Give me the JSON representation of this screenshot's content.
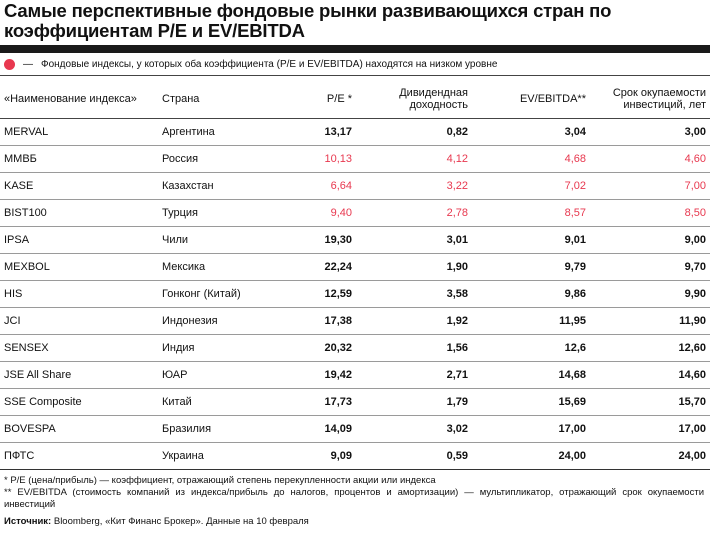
{
  "title": "Самые перспективные фондовые рынки развивающихся стран по коэффициентам P/E и EV/EBITDA",
  "legend": {
    "marker_color": "#e8384f",
    "text": "Фондовые индексы, у которых оба  коэффициента (P/E и EV/EBITDA) находятся на низком уровне"
  },
  "table": {
    "headers": [
      "«Наименование индекса»",
      "Страна",
      "P/E *",
      "Дивидендная доходность",
      "EV/EBITDA**",
      "Срок окупаемости инвестиций, лет"
    ],
    "rows": [
      {
        "name": "MERVAL",
        "country": "Аргентина",
        "pe": "13,17",
        "div": "0,82",
        "ev": "3,04",
        "payback": "3,00"
      },
      {
        "name": "ММВБ",
        "country": "Россия",
        "pe": "10,13",
        "div": "4,12",
        "ev": "4,68",
        "payback": "4,60"
      },
      {
        "name": "KASE",
        "country": "Казахстан",
        "pe": "6,64",
        "div": "3,22",
        "ev": "7,02",
        "payback": "7,00"
      },
      {
        "name": "BIST100",
        "country": "Турция",
        "pe": "9,40",
        "div": "2,78",
        "ev": "8,57",
        "payback": "8,50"
      },
      {
        "name": "IPSA",
        "country": "Чили",
        "pe": "19,30",
        "div": "3,01",
        "ev": "9,01",
        "payback": "9,00"
      },
      {
        "name": "MEXBOL",
        "country": "Мексика",
        "pe": "22,24",
        "div": "1,90",
        "ev": "9,79",
        "payback": "9,70"
      },
      {
        "name": "HIS",
        "country": "Гонконг (Китай)",
        "pe": "12,59",
        "div": "3,58",
        "ev": "9,86",
        "payback": "9,90"
      },
      {
        "name": "JCI",
        "country": "Индонезия",
        "pe": "17,38",
        "div": "1,92",
        "ev": "11,95",
        "payback": "11,90"
      },
      {
        "name": "SENSEX",
        "country": "Индия",
        "pe": "20,32",
        "div": "1,56",
        "ev": "12,6",
        "payback": "12,60"
      },
      {
        "name": "JSE All Share",
        "country": "ЮАР",
        "pe": "19,42",
        "div": "2,71",
        "ev": "14,68",
        "payback": "14,60"
      },
      {
        "name": "SSE Composite",
        "country": "Китай",
        "pe": "17,73",
        "div": "1,79",
        "ev": "15,69",
        "payback": "15,70"
      },
      {
        "name": "BOVESPA",
        "country": "Бразилия",
        "pe": "14,09",
        "div": "3,02",
        "ev": "17,00",
        "payback": "17,00"
      },
      {
        "name": "ПФТС",
        "country": "Украина",
        "pe": "9,09",
        "div": "0,59",
        "ev": "24,00",
        "payback": "24,00"
      }
    ],
    "highlighted_rows": [
      1,
      2,
      3
    ]
  },
  "footnotes": {
    "pe": "* P/E (цена/прибыль) — коэффициент, отражающий степень перекупленности акции или индекса",
    "ev": "** EV/EBITDA (стоимость компаний из индекса/прибыль до налогов, процентов и амортизации) — мультипликатор, отражающий срок окупаемости инвестиций",
    "source_label": "Источник:",
    "source_text": " Bloomberg, «Кит Финанс Брокер». Данные на 10 февраля"
  }
}
